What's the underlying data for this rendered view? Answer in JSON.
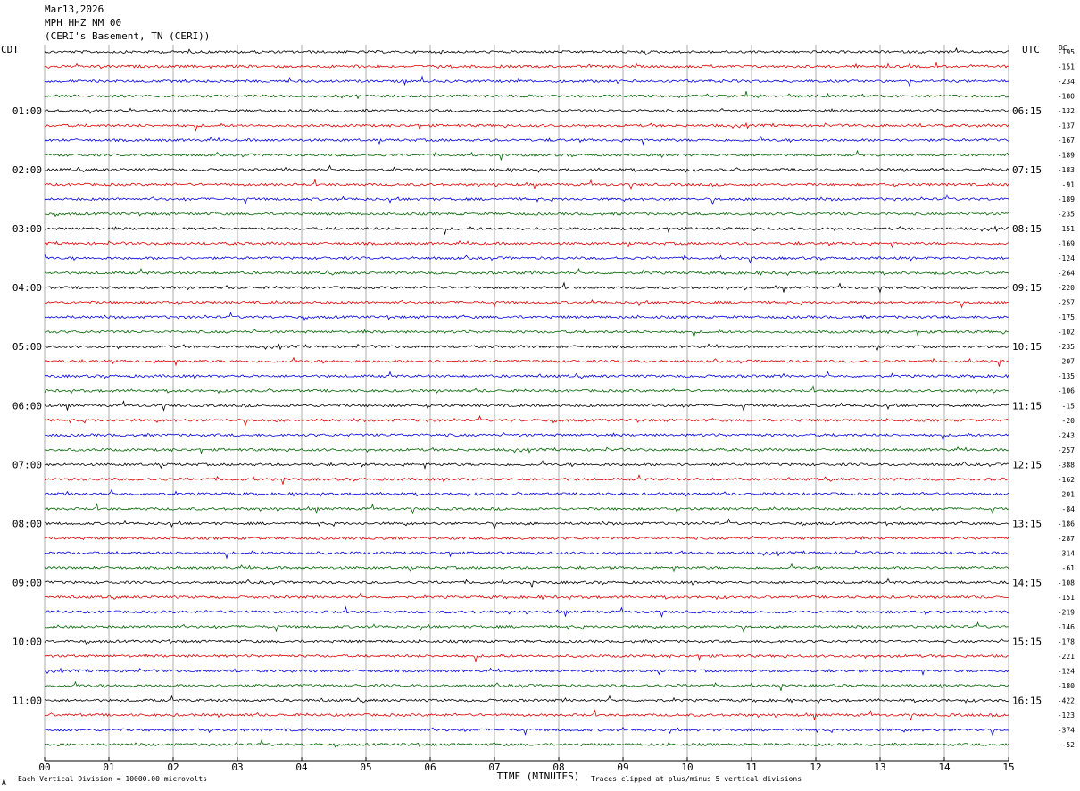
{
  "header": {
    "date": "Mar13,2026",
    "station": "MPH HHZ NM 00",
    "location": "(CERI's Basement, TN (CERI))"
  },
  "left_zone": "CDT",
  "right_zone": "UTC",
  "dc_label": "DC",
  "footer": {
    "scale_marker": "A",
    "scale_note": "Each Vertical Division = 10000.00 microvolts",
    "clip_note": "Traces clipped at plus/minus 5 vertical divisions"
  },
  "colors": {
    "trace_cycle": [
      "#000000",
      "#e00000",
      "#0000e0",
      "#006400"
    ],
    "grid": "#888888"
  },
  "chart_data": {
    "type": "line",
    "title": "Mar13,2026 MPH HHZ NM 00 (CERI's Basement, TN (CERI))",
    "xlabel": "TIME (MINUTES)",
    "ylabel": "",
    "xlim": [
      0,
      15
    ],
    "x_ticks": [
      "00",
      "01",
      "02",
      "03",
      "04",
      "05",
      "06",
      "07",
      "08",
      "09",
      "10",
      "11",
      "12",
      "13",
      "14",
      "15"
    ],
    "left_hour_labels": [
      "01:00",
      "02:00",
      "03:00",
      "04:00",
      "05:00",
      "06:00",
      "07:00",
      "08:00",
      "09:00",
      "10:00",
      "11:00"
    ],
    "right_hour_labels": [
      "06:15",
      "07:15",
      "08:15",
      "09:15",
      "10:15",
      "11:15",
      "12:15",
      "13:15",
      "14:15",
      "15:15",
      "16:15"
    ],
    "dc_offsets": [
      -195,
      -151,
      -234,
      -180,
      -132,
      -137,
      -167,
      -189,
      -183,
      -91,
      -189,
      -235,
      -151,
      -169,
      -124,
      -264,
      -220,
      -257,
      -175,
      -102,
      -235,
      -207,
      -135,
      -106,
      -15,
      -20,
      -243,
      -257,
      -388,
      -162,
      -201,
      -84,
      -186,
      -287,
      -314,
      -61,
      -108,
      -151,
      -219,
      -146,
      -178,
      -221,
      -124,
      -180,
      -422,
      -123,
      -374,
      -52
    ],
    "grid": true
  }
}
